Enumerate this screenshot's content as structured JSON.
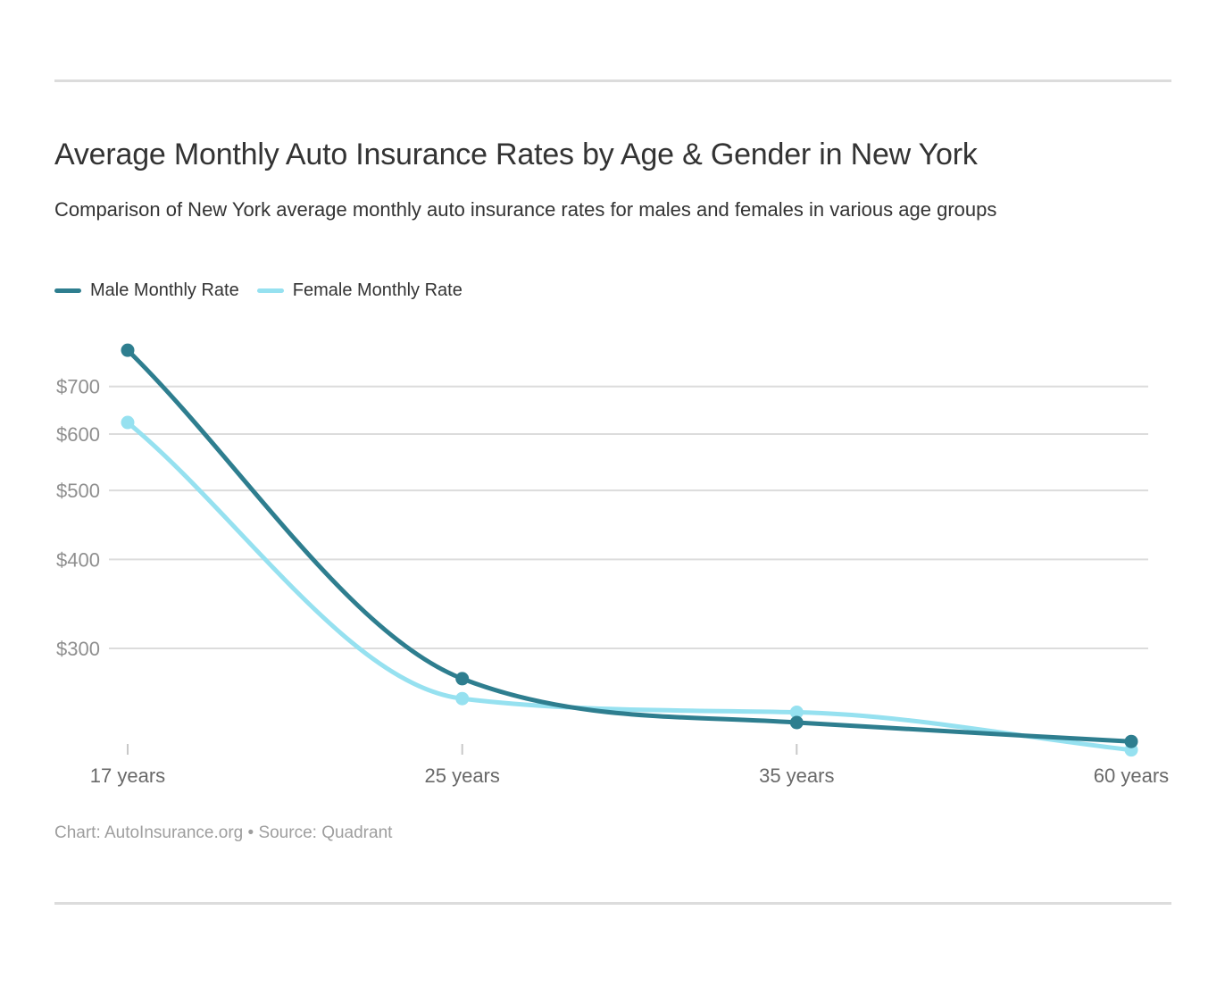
{
  "chart_data": {
    "type": "line",
    "title": "Average Monthly Auto Insurance Rates by Age & Gender in New York",
    "subtitle": "Comparison of New York average monthly auto insurance rates for males and females in various age groups",
    "categories": [
      "17 years",
      "25 years",
      "35 years",
      "60 years"
    ],
    "series": [
      {
        "name": "Male Monthly Rate",
        "color": "#2e7e8f",
        "values": [
          787,
          272,
          236,
          222
        ]
      },
      {
        "name": "Female Monthly Rate",
        "color": "#96e1f0",
        "values": [
          623,
          255,
          244,
          216
        ]
      }
    ],
    "y_ticks": [
      "$700",
      "$600",
      "$500",
      "$400",
      "$300"
    ],
    "y_tick_values": [
      700,
      600,
      500,
      400,
      300
    ],
    "y_scale": "log",
    "y_unit": "$ per month",
    "grid": true,
    "legend_position": "top-left",
    "footer": "Chart: AutoInsurance.org • Source: Quadrant",
    "colors": {
      "gridline": "#dcdcdc",
      "axis_tick": "#c8c8c8",
      "y_label_text": "#8f8f8f",
      "x_label_text": "#696969",
      "title_text": "#333333",
      "footer_text": "#9e9e9e"
    }
  }
}
